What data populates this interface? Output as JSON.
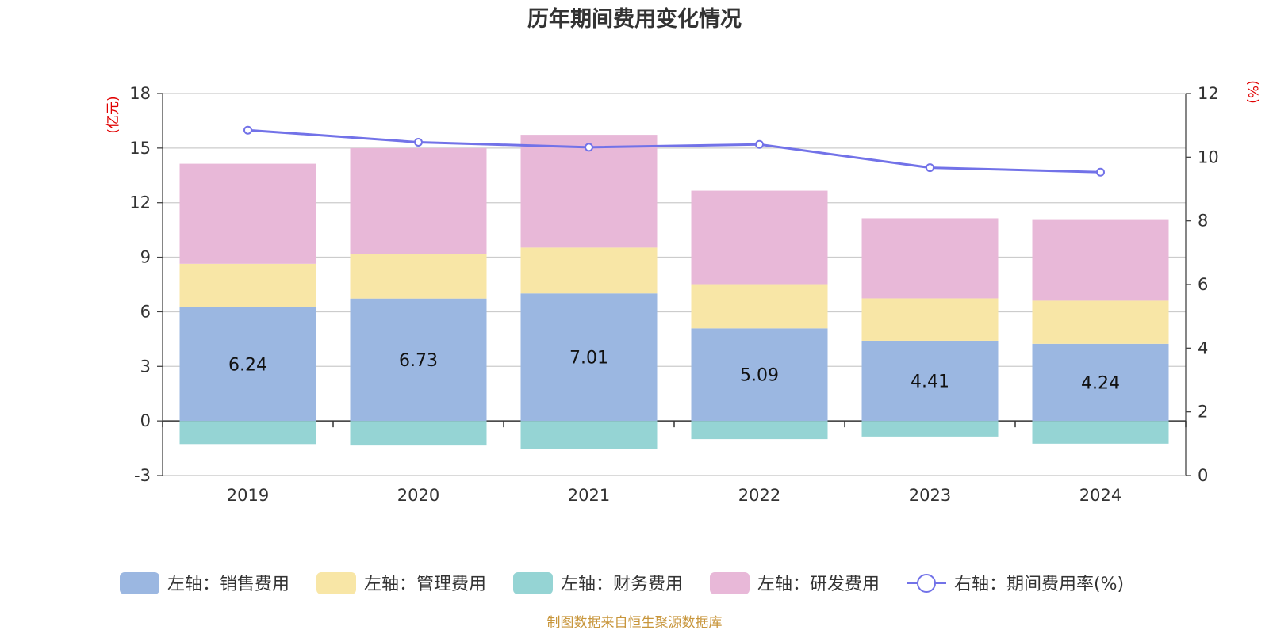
{
  "chart_data": {
    "type": "bar",
    "title": "历年期间费用变化情况",
    "categories": [
      "2019",
      "2020",
      "2021",
      "2022",
      "2023",
      "2024"
    ],
    "left_axis": {
      "unit": "(亿元)",
      "ylim": [
        -3,
        18
      ],
      "ticks": [
        "18",
        "15",
        "12",
        "9",
        "6",
        "3",
        "0",
        "-3"
      ],
      "tick_values": [
        18,
        15,
        12,
        9,
        6,
        3,
        0,
        -3
      ]
    },
    "right_axis": {
      "unit": "(%)",
      "ylim": [
        0,
        12
      ],
      "ticks": [
        "12",
        "10",
        "8",
        "6",
        "4",
        "2",
        "0"
      ],
      "tick_values": [
        12,
        10,
        8,
        6,
        4,
        2,
        0
      ]
    },
    "stacked": true,
    "grid": true,
    "legend_position": "bottom",
    "series": [
      {
        "name": "左轴：销售费用",
        "axis": "left",
        "color": "#9bb7e1",
        "values": [
          6.24,
          6.73,
          7.01,
          5.09,
          4.41,
          4.24
        ],
        "labels": [
          "6.24",
          "6.73",
          "7.01",
          "5.09",
          "4.41",
          "4.24"
        ]
      },
      {
        "name": "左轴：管理费用",
        "axis": "left",
        "color": "#f8e6a6",
        "values": [
          2.4,
          2.43,
          2.52,
          2.43,
          2.33,
          2.37
        ]
      },
      {
        "name": "左轴：财务费用",
        "axis": "left",
        "color": "#95d4d4",
        "values": [
          -1.27,
          -1.35,
          -1.53,
          -1.0,
          -0.86,
          -1.25
        ]
      },
      {
        "name": "左轴：研发费用",
        "axis": "left",
        "color": "#e8b8d8",
        "values": [
          5.5,
          5.84,
          6.2,
          5.14,
          4.4,
          4.48
        ]
      },
      {
        "name": "右轴：期间费用率(%)",
        "axis": "right",
        "type": "line",
        "color": "#7272e8",
        "values": [
          10.85,
          10.47,
          10.31,
          10.4,
          9.67,
          9.53
        ]
      }
    ],
    "source": "制图数据来自恒生聚源数据库"
  }
}
